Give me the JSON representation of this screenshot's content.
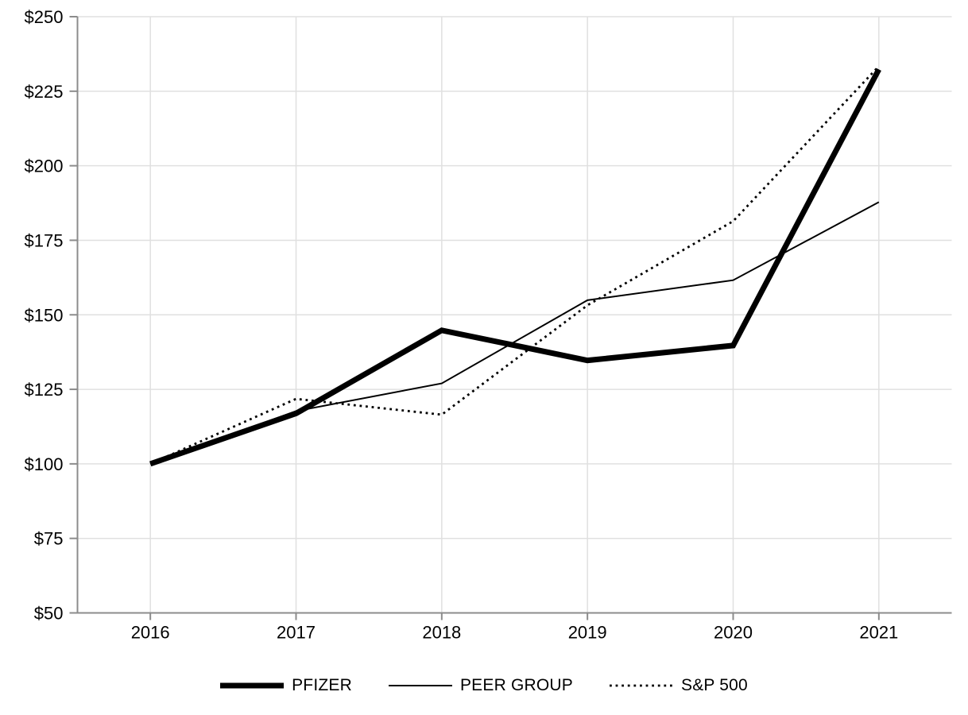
{
  "chart_data": {
    "type": "line",
    "title": "",
    "xlabel": "",
    "ylabel": "",
    "x": [
      "2016",
      "2017",
      "2018",
      "2019",
      "2020",
      "2021"
    ],
    "ylim": [
      50,
      250
    ],
    "y_ticks": [
      {
        "value": 50,
        "label": "$50"
      },
      {
        "value": 75,
        "label": "$75"
      },
      {
        "value": 100,
        "label": "$100"
      },
      {
        "value": 125,
        "label": "$125"
      },
      {
        "value": 150,
        "label": "$150"
      },
      {
        "value": 175,
        "label": "$175"
      },
      {
        "value": 200,
        "label": "$200"
      },
      {
        "value": 225,
        "label": "$225"
      },
      {
        "value": 250,
        "label": "$250"
      }
    ],
    "grid": "both",
    "legend_position": "bottom-center",
    "series": [
      {
        "name": "PFIZER",
        "line_style": "thick-solid",
        "values": [
          100.0,
          116.9,
          144.8,
          134.7,
          139.7,
          232.3
        ]
      },
      {
        "name": "PEER GROUP",
        "line_style": "thin-solid",
        "values": [
          100.0,
          117.7,
          127.0,
          154.9,
          161.6,
          187.8
        ]
      },
      {
        "name": "S&P 500",
        "line_style": "dotted",
        "values": [
          100.0,
          121.8,
          116.5,
          153.2,
          181.4,
          233.4
        ]
      }
    ],
    "colors": {
      "line": "#000000",
      "axis": "#8c8c8c",
      "grid": "#e0e0e0",
      "text": "#000000",
      "background": "#ffffff"
    }
  }
}
